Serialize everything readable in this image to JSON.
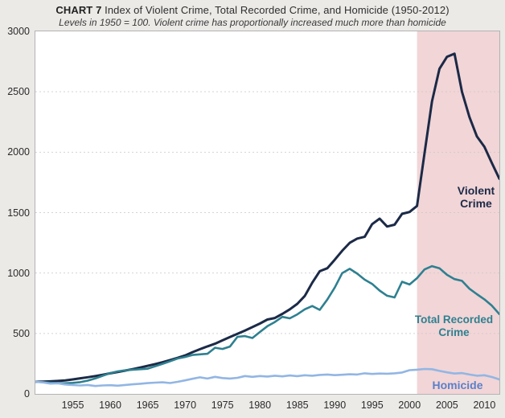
{
  "header": {
    "title_prefix": "CHART 7",
    "title_rest": "Index of Violent Crime, Total Recorded Crime, and Homicide (1950-2012)",
    "subtitle": "Levels in 1950 = 100. Violent crime has proportionally increased much more than homicide"
  },
  "chart_data": {
    "type": "line",
    "title": "Index of Violent Crime, Total Recorded Crime, and Homicide (1950-2012)",
    "subtitle": "Levels in 1950 = 100. Violent crime has proportionally increased much more than homicide",
    "xlim": [
      1950,
      2012
    ],
    "ylim": [
      0,
      3000
    ],
    "yticks": [
      0,
      500,
      1000,
      1500,
      2000,
      2500,
      3000
    ],
    "xticks": [
      1955,
      1960,
      1965,
      1970,
      1975,
      1980,
      1985,
      1990,
      1995,
      2000,
      2005,
      2010
    ],
    "grid": "horizontal-dotted",
    "grid_color": "#c9c9c9",
    "plot_background": "#ffffff",
    "page_background": "#ebeae7",
    "highlight_region": {
      "x_start": 2001,
      "x_end": 2012,
      "color": "#f2d5d7"
    },
    "legend_position": "inline-labels-right",
    "x": [
      1950,
      1951,
      1952,
      1953,
      1954,
      1955,
      1956,
      1957,
      1958,
      1959,
      1960,
      1961,
      1962,
      1963,
      1964,
      1965,
      1966,
      1967,
      1968,
      1969,
      1970,
      1971,
      1972,
      1973,
      1974,
      1975,
      1976,
      1977,
      1978,
      1979,
      1980,
      1981,
      1982,
      1983,
      1984,
      1985,
      1986,
      1987,
      1988,
      1989,
      1990,
      1991,
      1992,
      1993,
      1994,
      1995,
      1996,
      1997,
      1998,
      1999,
      2000,
      2001,
      2002,
      2003,
      2004,
      2005,
      2006,
      2007,
      2008,
      2009,
      2010,
      2011,
      2012
    ],
    "series": [
      {
        "id": "violent-crime",
        "name": "Violent Crime",
        "label_lines": [
          "Violent",
          "Crime"
        ],
        "color": "#1b2a47",
        "label_color": "#1b2a47",
        "width": 3,
        "values": [
          100,
          102,
          104,
          107,
          112,
          120,
          129,
          138,
          148,
          158,
          170,
          181,
          193,
          205,
          218,
          232,
          247,
          262,
          280,
          298,
          318,
          345,
          370,
          393,
          415,
          443,
          470,
          497,
          524,
          553,
          582,
          615,
          628,
          662,
          700,
          745,
          810,
          920,
          1015,
          1040,
          1110,
          1185,
          1250,
          1285,
          1300,
          1405,
          1450,
          1385,
          1400,
          1490,
          1505,
          1555,
          1990,
          2420,
          2690,
          2790,
          2815,
          2500,
          2290,
          2130,
          2045,
          1910,
          1780
        ]
      },
      {
        "id": "total-recorded-crime",
        "name": "Total Recorded Crime",
        "label_lines": [
          "Total Recorded",
          "Crime"
        ],
        "color": "#2e8090",
        "label_color": "#2e8090",
        "width": 2.6,
        "values": [
          100,
          97,
          93,
          90,
          88,
          91,
          97,
          110,
          128,
          150,
          172,
          186,
          195,
          200,
          204,
          208,
          228,
          249,
          270,
          293,
          305,
          322,
          327,
          332,
          382,
          372,
          392,
          472,
          478,
          462,
          512,
          560,
          595,
          637,
          625,
          658,
          700,
          727,
          695,
          780,
          880,
          1000,
          1035,
          995,
          945,
          910,
          855,
          812,
          798,
          928,
          905,
          958,
          1030,
          1057,
          1040,
          985,
          950,
          935,
          870,
          825,
          782,
          730,
          660
        ]
      },
      {
        "id": "homicide",
        "name": "Homicide",
        "label_lines": [
          "Homicide"
        ],
        "color": "#92b6e4",
        "label_color": "#5b80c8",
        "width": 2.6,
        "values": [
          100,
          95,
          85,
          88,
          78,
          73,
          70,
          74,
          65,
          70,
          72,
          68,
          74,
          79,
          84,
          89,
          93,
          96,
          90,
          100,
          112,
          125,
          137,
          127,
          141,
          131,
          127,
          133,
          148,
          141,
          148,
          144,
          150,
          145,
          152,
          147,
          154,
          150,
          157,
          160,
          155,
          158,
          162,
          160,
          170,
          165,
          168,
          167,
          170,
          177,
          196,
          200,
          206,
          204,
          190,
          178,
          168,
          172,
          160,
          150,
          154,
          140,
          120
        ]
      }
    ]
  }
}
